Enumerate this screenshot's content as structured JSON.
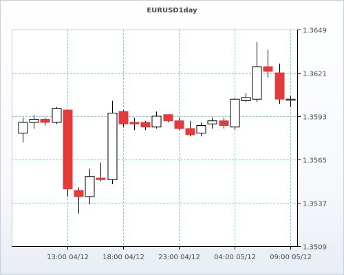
{
  "chart_data": {
    "type": "candlestick",
    "title": "EURUSD1day",
    "y_ticks": [
      "1.3649",
      "1.3621",
      "1.3593",
      "1.3565",
      "1.3537",
      "1.3509"
    ],
    "ylim": [
      1.3509,
      1.3649
    ],
    "x_ticks": [
      "13:00 04/12",
      "18:00 04/12",
      "23:00 04/12",
      "04:00 05/12",
      "09:00 05/12"
    ],
    "x_tick_candle_index": [
      4,
      9,
      14,
      19,
      24
    ],
    "grid": true,
    "colors": {
      "up_fill": "#ffffff",
      "down_fill": "#e23b3b",
      "outline": "#000000",
      "grid": "#7ccfd6"
    },
    "candles": [
      {
        "open": 1.3582,
        "high": 1.3592,
        "low": 1.3576,
        "close": 1.3589
      },
      {
        "open": 1.3589,
        "high": 1.3594,
        "low": 1.3585,
        "close": 1.3591
      },
      {
        "open": 1.3591,
        "high": 1.3592,
        "low": 1.3587,
        "close": 1.3589
      },
      {
        "open": 1.3589,
        "high": 1.3599,
        "low": 1.3588,
        "close": 1.3598
      },
      {
        "open": 1.3597,
        "high": 1.3597,
        "low": 1.3541,
        "close": 1.3546
      },
      {
        "open": 1.3545,
        "high": 1.3547,
        "low": 1.353,
        "close": 1.3541
      },
      {
        "open": 1.3541,
        "high": 1.3559,
        "low": 1.3536,
        "close": 1.3554
      },
      {
        "open": 1.3553,
        "high": 1.3563,
        "low": 1.3551,
        "close": 1.3552
      },
      {
        "open": 1.3552,
        "high": 1.3603,
        "low": 1.3549,
        "close": 1.3595
      },
      {
        "open": 1.3596,
        "high": 1.3597,
        "low": 1.3586,
        "close": 1.3588
      },
      {
        "open": 1.3589,
        "high": 1.3592,
        "low": 1.3584,
        "close": 1.3588
      },
      {
        "open": 1.3589,
        "high": 1.359,
        "low": 1.3584,
        "close": 1.3586
      },
      {
        "open": 1.3586,
        "high": 1.3596,
        "low": 1.3585,
        "close": 1.3593
      },
      {
        "open": 1.3594,
        "high": 1.3594,
        "low": 1.3589,
        "close": 1.359
      },
      {
        "open": 1.359,
        "high": 1.3592,
        "low": 1.3584,
        "close": 1.3585
      },
      {
        "open": 1.3585,
        "high": 1.359,
        "low": 1.358,
        "close": 1.3581
      },
      {
        "open": 1.3582,
        "high": 1.3589,
        "low": 1.358,
        "close": 1.3587
      },
      {
        "open": 1.3588,
        "high": 1.3592,
        "low": 1.3585,
        "close": 1.359
      },
      {
        "open": 1.359,
        "high": 1.3592,
        "low": 1.3585,
        "close": 1.3587
      },
      {
        "open": 1.3586,
        "high": 1.3605,
        "low": 1.3584,
        "close": 1.3604
      },
      {
        "open": 1.3603,
        "high": 1.3608,
        "low": 1.3602,
        "close": 1.3605
      },
      {
        "open": 1.3604,
        "high": 1.3641,
        "low": 1.3602,
        "close": 1.3625
      },
      {
        "open": 1.3625,
        "high": 1.3636,
        "low": 1.3618,
        "close": 1.3622
      },
      {
        "open": 1.3621,
        "high": 1.3627,
        "low": 1.3601,
        "close": 1.3604
      },
      {
        "open": 1.3604,
        "high": 1.3606,
        "low": 1.3599,
        "close": 1.3604
      }
    ]
  }
}
